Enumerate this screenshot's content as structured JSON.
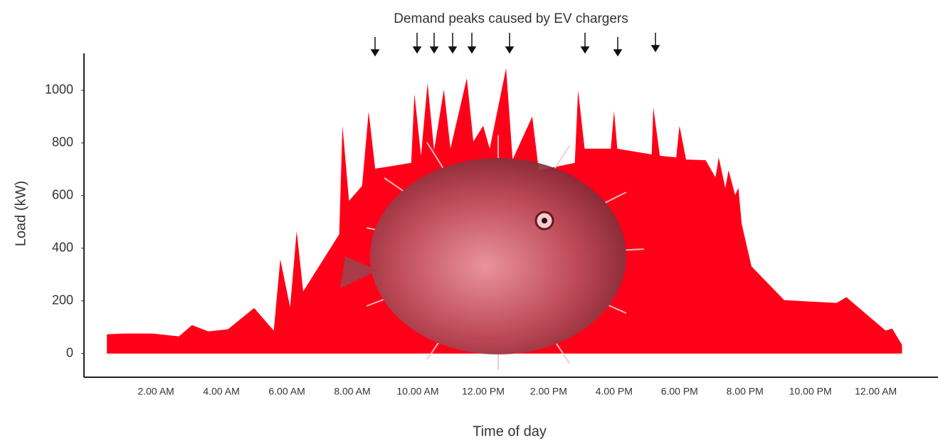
{
  "chart_data": {
    "type": "area",
    "annotation": "Demand peaks caused by EV chargers",
    "x_label": "Time of day",
    "y_label": "Load (kW)",
    "color": "#ff0018",
    "x": [
      0.5,
      1.0,
      1.9,
      2.7,
      3.1,
      3.6,
      4.2,
      5.0,
      5.6,
      5.8,
      6.1,
      6.3,
      6.5,
      7.6,
      7.7,
      7.9,
      8.3,
      8.5,
      8.7,
      9.8,
      9.9,
      10.1,
      10.3,
      10.5,
      10.8,
      11.0,
      11.5,
      11.7,
      12.0,
      12.2,
      12.7,
      12.9,
      13.5,
      13.7,
      14.8,
      14.9,
      15.1,
      15.9,
      16.0,
      16.1,
      17.15,
      17.2,
      17.4,
      17.9,
      18.0,
      18.2,
      18.8,
      19.1,
      19.2,
      19.4,
      19.5,
      19.7,
      19.8,
      19.9,
      20.2,
      21.2,
      22.8,
      23.1,
      24.3,
      24.5,
      24.8
    ],
    "values": [
      73,
      76,
      76,
      65,
      108,
      84,
      92,
      173,
      87,
      358,
      176,
      466,
      236,
      453,
      865,
      580,
      637,
      919,
      702,
      724,
      986,
      751,
      1027,
      772,
      1003,
      778,
      1046,
      805,
      865,
      778,
      1084,
      737,
      900,
      696,
      724,
      1000,
      778,
      778,
      921,
      778,
      756,
      935,
      751,
      745,
      865,
      737,
      734,
      669,
      745,
      629,
      696,
      602,
      629,
      493,
      331,
      203,
      192,
      214,
      87,
      95,
      33
    ],
    "xlim": [
      -0.2,
      25.9
    ],
    "ylim": [
      -90,
      1140
    ],
    "xticks": [
      {
        "value": 2,
        "label": "2.00 AM"
      },
      {
        "value": 4,
        "label": "4.00 AM"
      },
      {
        "value": 6,
        "label": "6.00 AM"
      },
      {
        "value": 8,
        "label": "8.00 AM"
      },
      {
        "value": 10,
        "label": "10.00 AM"
      },
      {
        "value": 12,
        "label": "12.00 PM"
      },
      {
        "value": 14,
        "label": "2.00 PM"
      },
      {
        "value": 16,
        "label": "4.00 PM"
      },
      {
        "value": 18,
        "label": "6.00 PM"
      },
      {
        "value": 20,
        "label": "8.00 PM"
      },
      {
        "value": 22,
        "label": "10.00 PM"
      },
      {
        "value": 24,
        "label": "12.00 AM"
      }
    ],
    "yticks": [
      0,
      200,
      400,
      600,
      800,
      1000
    ],
    "grid": false
  }
}
